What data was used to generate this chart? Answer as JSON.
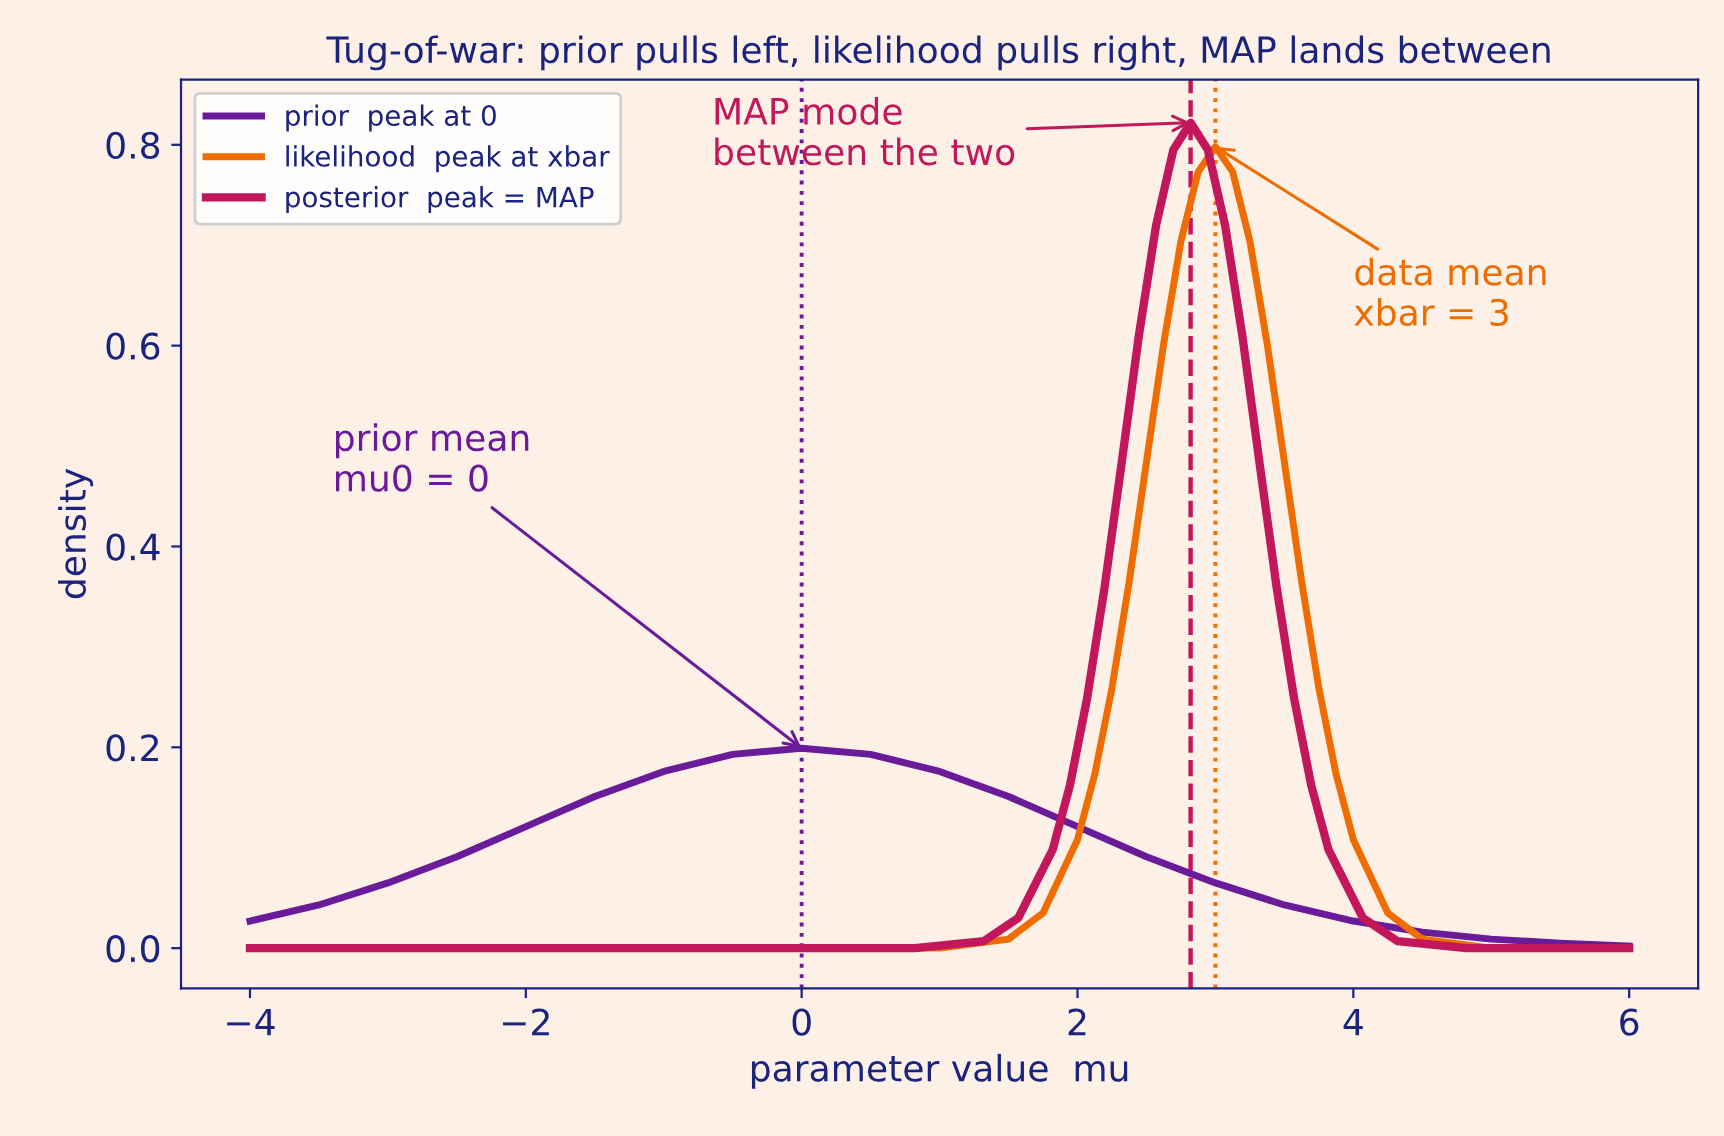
{
  "chart_data": {
    "type": "line",
    "title": "Tug-of-war: prior pulls left, likelihood pulls right, MAP lands between",
    "xlabel": "parameter value  mu",
    "ylabel": "density",
    "series": [
      {
        "name": "prior  peak at 0",
        "color": "#6a1b9a",
        "x": [
          -4,
          -3.5,
          -3,
          -2.5,
          -2,
          -1.5,
          -1,
          -0.5,
          0,
          0.5,
          1,
          1.5,
          2,
          2.5,
          3,
          3.5,
          4,
          4.5,
          5,
          5.5,
          6
        ],
        "values": [
          0.027,
          0.043,
          0.065,
          0.091,
          0.121,
          0.151,
          0.176,
          0.193,
          0.199,
          0.193,
          0.176,
          0.151,
          0.121,
          0.091,
          0.065,
          0.043,
          0.027,
          0.016,
          0.009,
          0.005,
          0.002
        ]
      },
      {
        "name": "likelihood  peak at xbar",
        "color": "#ef6c00",
        "x": [
          -4,
          1,
          1.5,
          1.75,
          2,
          2.125,
          2.25,
          2.375,
          2.5,
          2.625,
          2.75,
          2.875,
          3,
          3.125,
          3.25,
          3.375,
          3.5,
          3.625,
          3.75,
          3.875,
          4,
          4.25,
          4.5,
          5,
          6
        ],
        "values": [
          0,
          0,
          0.009,
          0.035,
          0.108,
          0.173,
          0.259,
          0.365,
          0.484,
          0.602,
          0.704,
          0.773,
          0.798,
          0.773,
          0.704,
          0.602,
          0.484,
          0.365,
          0.259,
          0.173,
          0.108,
          0.035,
          0.009,
          0,
          0
        ]
      },
      {
        "name": "posterior  peak = MAP",
        "color": "#c2185b",
        "x": [
          -4,
          0.82,
          1.32,
          1.57,
          1.82,
          1.945,
          2.07,
          2.195,
          2.32,
          2.445,
          2.57,
          2.695,
          2.82,
          2.945,
          3.07,
          3.195,
          3.32,
          3.445,
          3.57,
          3.695,
          3.82,
          4.07,
          4.32,
          4.82,
          6
        ],
        "values": [
          0,
          0,
          0.007,
          0.03,
          0.098,
          0.162,
          0.249,
          0.358,
          0.483,
          0.61,
          0.72,
          0.795,
          0.822,
          0.795,
          0.72,
          0.61,
          0.483,
          0.358,
          0.249,
          0.162,
          0.098,
          0.03,
          0.007,
          0,
          0
        ]
      }
    ],
    "ref_lines": [
      {
        "axis": "x",
        "value": 0,
        "color": "#6a1b9a",
        "line_style": "dotted"
      },
      {
        "axis": "x",
        "value": 3,
        "color": "#ef6c00",
        "line_style": "dotted"
      },
      {
        "axis": "x",
        "value": 2.82,
        "color": "#c2185b",
        "line_style": "dashed"
      }
    ],
    "annotations": [
      {
        "text": "prior mean\nmu0 = 0",
        "x": 0,
        "y": 0.199
      },
      "MAP mode\nbetween the two",
      {
        "text": "data mean\nxbar = 3",
        "x": 3,
        "y": 0.798
      }
    ],
    "xlim": [
      -4.5,
      6.5
    ],
    "ylim": [
      -0.04,
      0.865
    ],
    "xticks": [
      {
        "value": -4,
        "label": "−4"
      },
      {
        "value": -2,
        "label": "−2"
      },
      0,
      2,
      4,
      6
    ],
    "yticks": [
      {
        "value": 0,
        "label": "0.0"
      },
      0.2,
      0.4,
      0.6,
      0.8
    ],
    "legend": "top left",
    "grid": false,
    "marker": "none",
    "line_style": "solid"
  }
}
